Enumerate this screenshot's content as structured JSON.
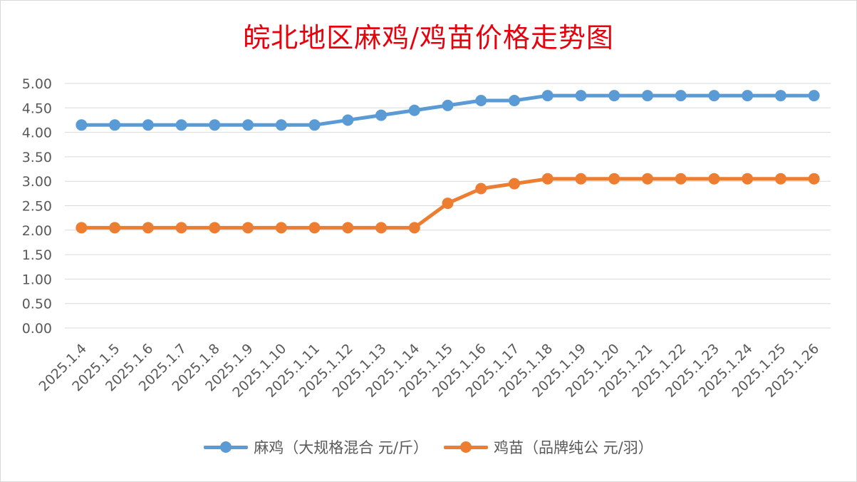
{
  "chart_data": {
    "type": "line",
    "title": "皖北地区麻鸡/鸡苗价格走势图",
    "categories": [
      "2025.1.4",
      "2025.1.5",
      "2025.1.6",
      "2025.1.7",
      "2025.1.8",
      "2025.1.9",
      "2025.1.10",
      "2025.1.11",
      "2025.1.12",
      "2025.1.13",
      "2025.1.14",
      "2025.1.15",
      "2025.1.16",
      "2025.1.17",
      "2025.1.18",
      "2025.1.19",
      "2025.1.20",
      "2025.1.21",
      "2025.1.22",
      "2025.1.23",
      "2025.1.24",
      "2025.1.25",
      "2025.1.26"
    ],
    "series": [
      {
        "name": "麻鸡（大规格混合 元/斤）",
        "color": "#5b9bd5",
        "values": [
          4.15,
          4.15,
          4.15,
          4.15,
          4.15,
          4.15,
          4.15,
          4.15,
          4.25,
          4.35,
          4.45,
          4.55,
          4.65,
          4.65,
          4.75,
          4.75,
          4.75,
          4.75,
          4.75,
          4.75,
          4.75,
          4.75,
          4.75
        ]
      },
      {
        "name": "鸡苗（品牌纯公 元/羽）",
        "color": "#ed7d31",
        "values": [
          2.05,
          2.05,
          2.05,
          2.05,
          2.05,
          2.05,
          2.05,
          2.05,
          2.05,
          2.05,
          2.05,
          2.55,
          2.85,
          2.95,
          3.05,
          3.05,
          3.05,
          3.05,
          3.05,
          3.05,
          3.05,
          3.05,
          3.05
        ]
      }
    ],
    "yticks": [
      "0.00",
      "0.50",
      "1.00",
      "1.50",
      "2.00",
      "2.50",
      "3.00",
      "3.50",
      "4.00",
      "4.50",
      "5.00"
    ],
    "ylim": [
      0,
      5
    ],
    "grid": true,
    "legend_position": "bottom",
    "gridline_color": "#d9d9d9"
  }
}
